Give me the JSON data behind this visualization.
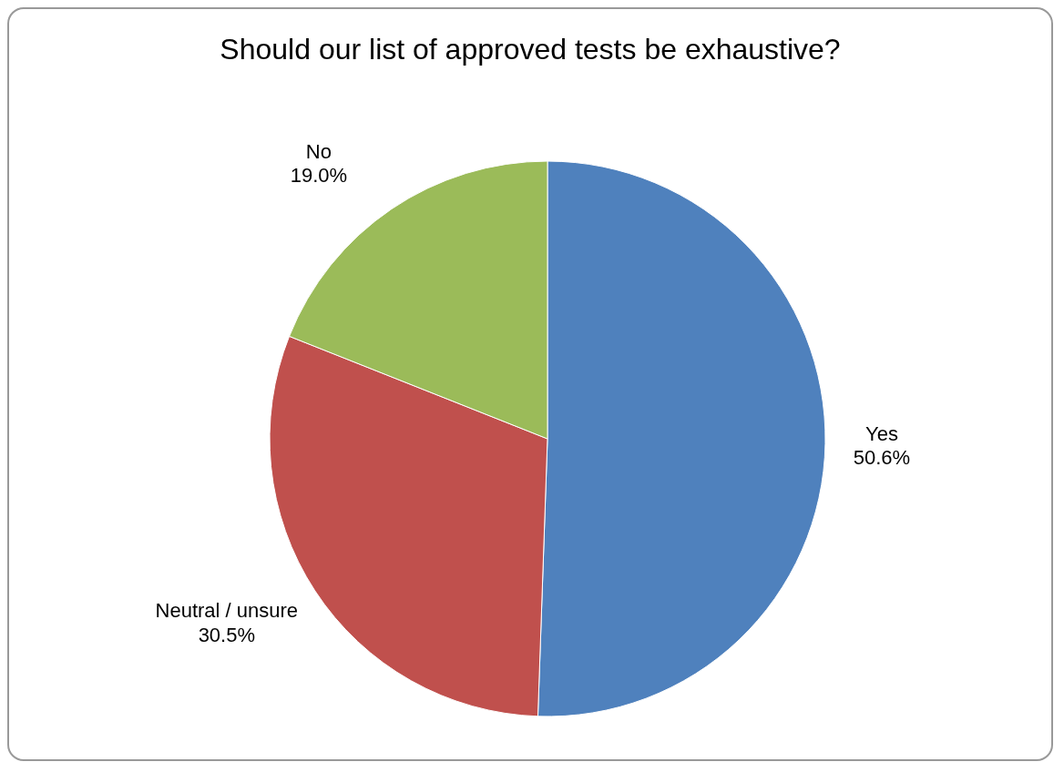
{
  "chart_data": {
    "type": "pie",
    "title": "Should our list of approved tests be exhaustive?",
    "categories": [
      "Yes",
      "Neutral / unsure",
      "No"
    ],
    "values": [
      50.6,
      30.5,
      19.0
    ],
    "value_labels": [
      "50.6%",
      "30.5%",
      "19.0%"
    ],
    "colors": [
      "#4f81bd",
      "#c0504d",
      "#9bbb59"
    ]
  }
}
